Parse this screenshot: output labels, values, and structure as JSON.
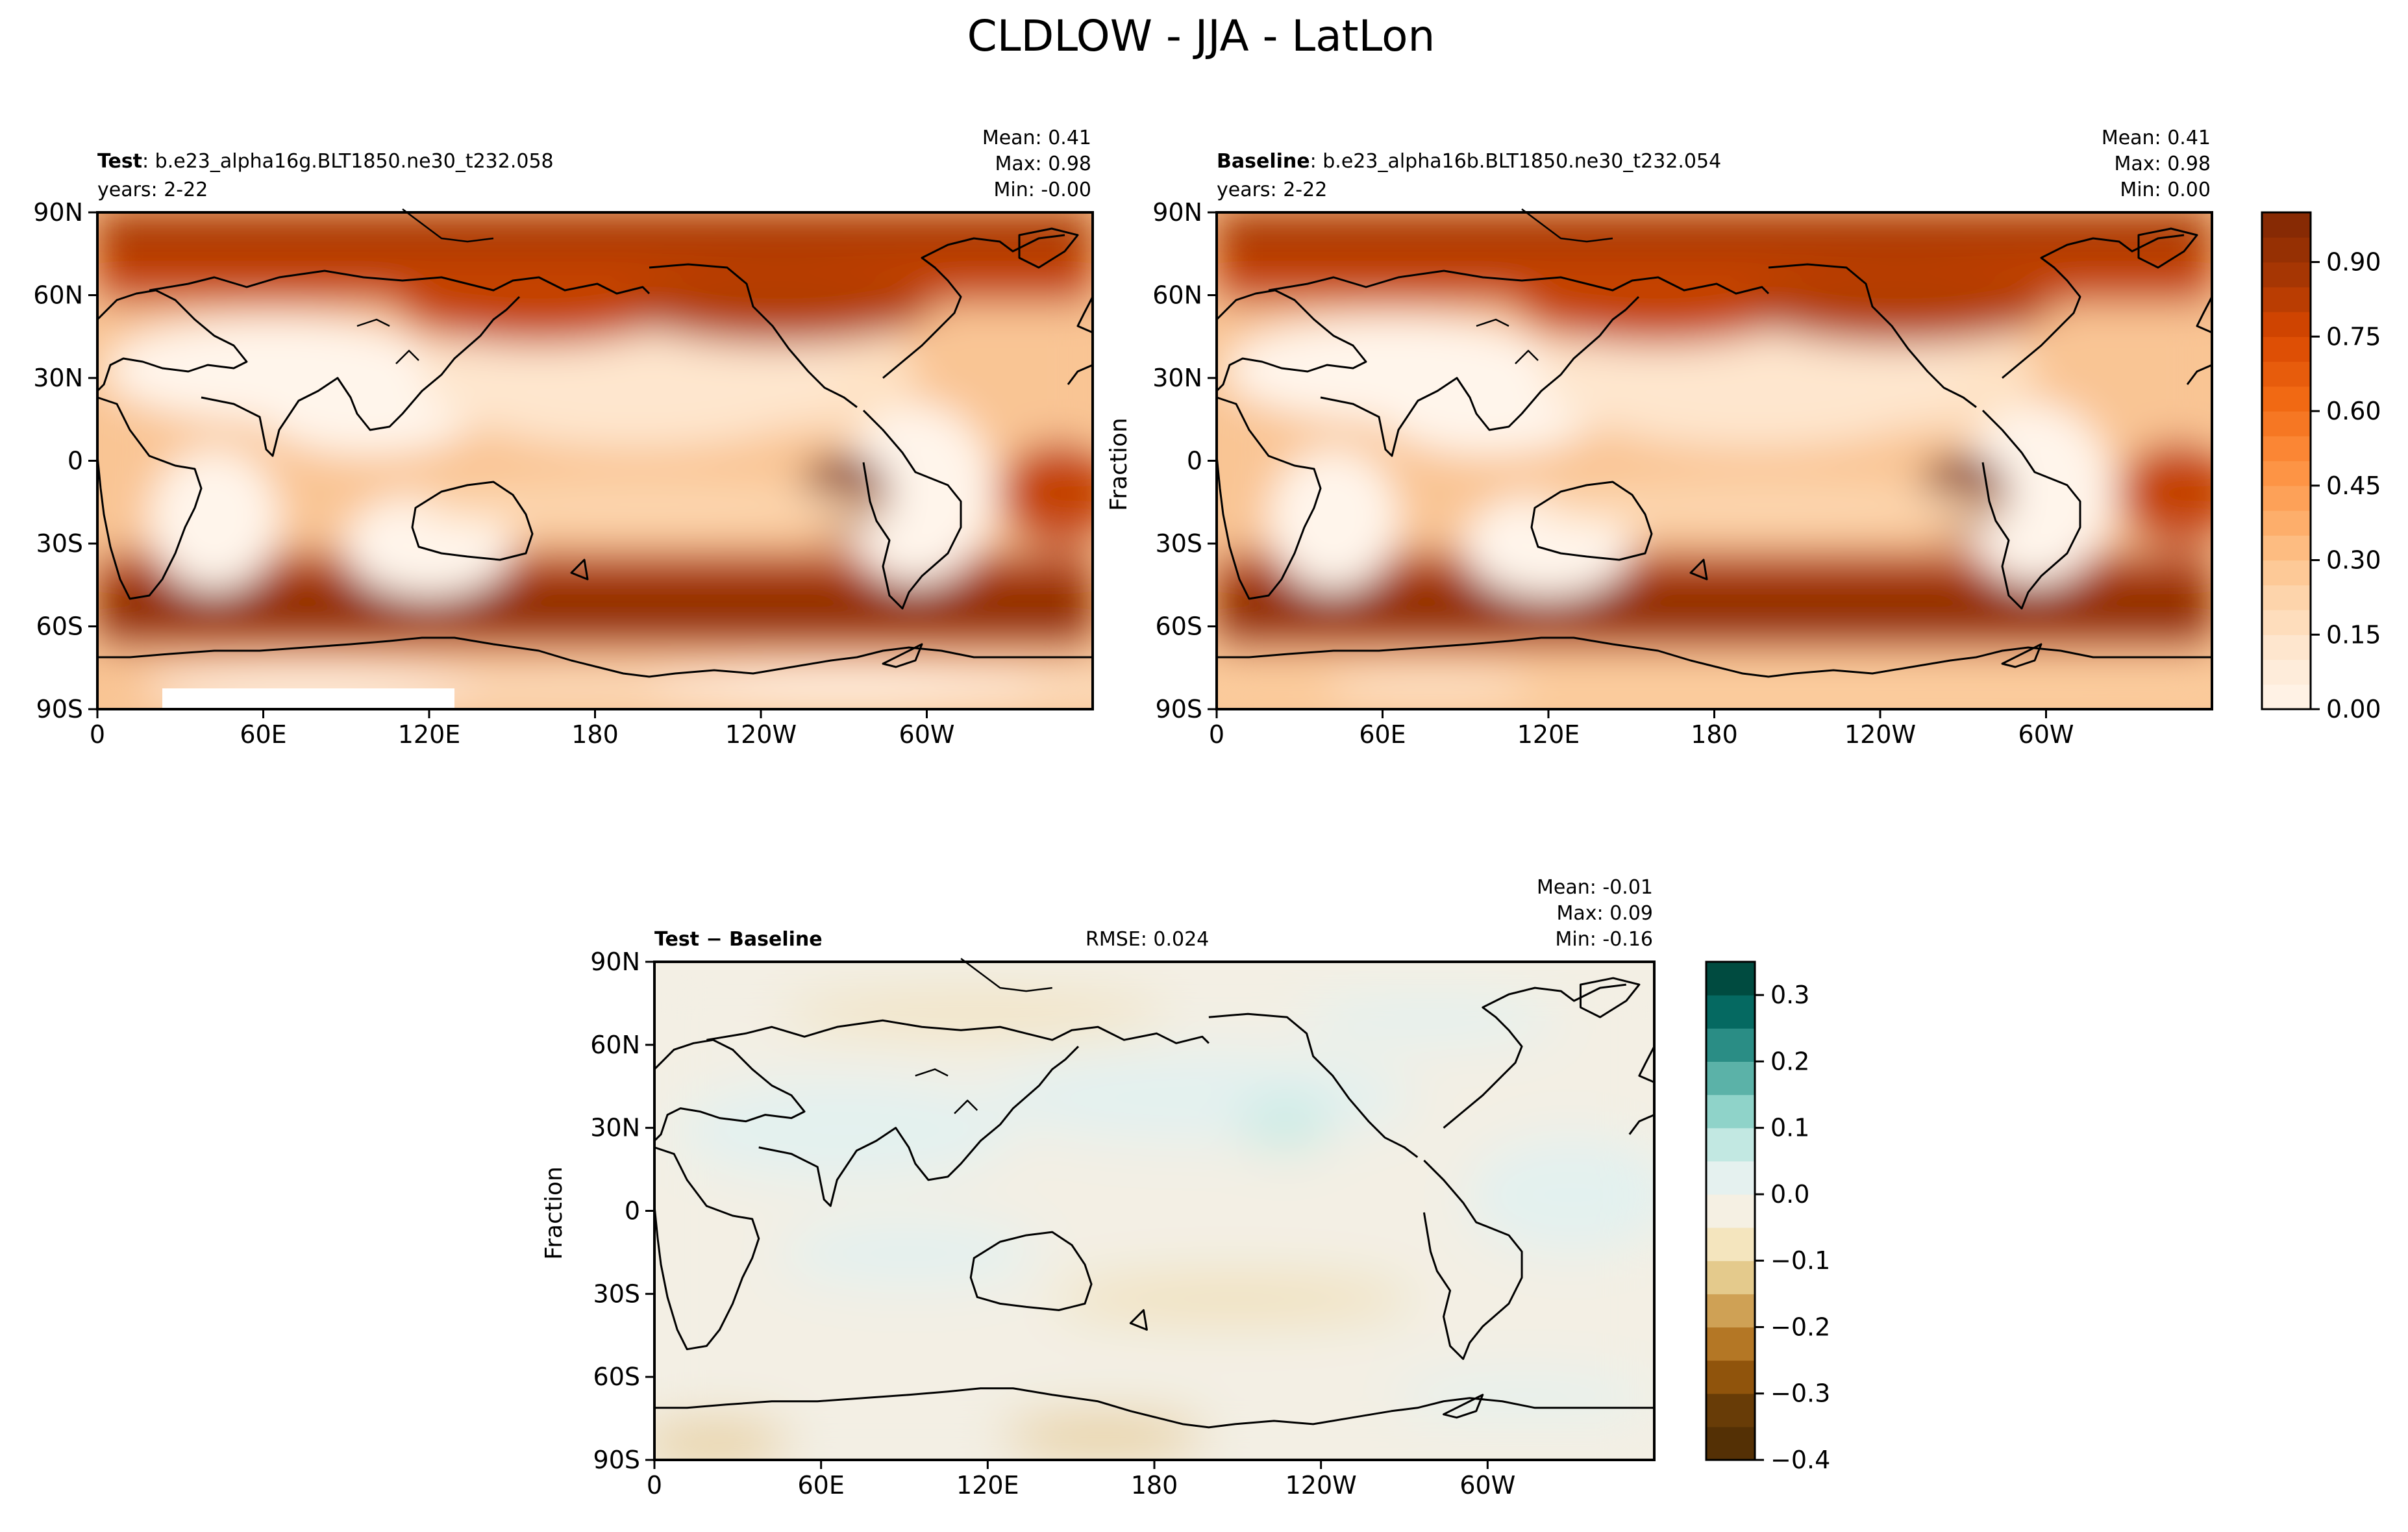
{
  "figure_title": "CLDLOW - JJA - LatLon",
  "colors": {
    "seq_stops": [
      "#fff5eb",
      "#fee6ce",
      "#fdd0a2",
      "#fdae6b",
      "#fd8d3c",
      "#f16913",
      "#d94801",
      "#a63603",
      "#7f2704"
    ],
    "div_stops": [
      "#543005",
      "#8c510a",
      "#bf812d",
      "#dfc27d",
      "#f6e8c3",
      "#f5f5f5",
      "#c7eae5",
      "#80cdc1",
      "#35978f",
      "#01665e",
      "#003c30"
    ],
    "land_outline": "#000000"
  },
  "chart_data": [
    {
      "type": "heatmap",
      "panel": "test",
      "label_bold": "Test",
      "label_text": ": b.e23_alpha16g.BLT1850.ne30_t232.058",
      "years": "years: 2-22",
      "stats": [
        "Mean:  0.41",
        "Max:  0.98",
        "Min: -0.00"
      ],
      "xticks": [
        "0",
        "60E",
        "120E",
        "180",
        "120W",
        "60W"
      ],
      "yticks": [
        "90N",
        "60N",
        "30N",
        "0",
        "30S",
        "60S",
        "90S"
      ],
      "xlim": [
        0,
        360
      ],
      "ylim": [
        -90,
        90
      ],
      "value_range": [
        0.0,
        0.98
      ]
    },
    {
      "type": "heatmap",
      "panel": "baseline",
      "label_bold": "Baseline",
      "label_text": ": b.e23_alpha16b.BLT1850.ne30_t232.054",
      "years": "years: 2-22",
      "stats": [
        "Mean:  0.41",
        "Max:  0.98",
        "Min:  0.00"
      ],
      "ylabel": "Fraction",
      "xticks": [
        "0",
        "60E",
        "120E",
        "180",
        "120W",
        "60W"
      ],
      "yticks": [
        "90N",
        "60N",
        "30N",
        "0",
        "30S",
        "60S",
        "90S"
      ],
      "xlim": [
        0,
        360
      ],
      "ylim": [
        -90,
        90
      ],
      "value_range": [
        0.0,
        0.98
      ],
      "colorbar": {
        "ticks": [
          "0.00",
          "0.15",
          "0.30",
          "0.45",
          "0.60",
          "0.75",
          "0.90"
        ],
        "min": 0.0,
        "max": 1.0,
        "levels": 20
      }
    },
    {
      "type": "heatmap",
      "panel": "diff",
      "label_bold": "Test − Baseline",
      "rmse": "RMSE: 0.024",
      "stats": [
        "Mean: -0.01",
        "Max:  0.09",
        "Min: -0.16"
      ],
      "ylabel": "Fraction",
      "xticks": [
        "0",
        "60E",
        "120E",
        "180",
        "120W",
        "60W"
      ],
      "yticks": [
        "90N",
        "60N",
        "30N",
        "0",
        "30S",
        "60S",
        "90S"
      ],
      "xlim": [
        0,
        360
      ],
      "ylim": [
        -90,
        90
      ],
      "value_range": [
        -0.16,
        0.09
      ],
      "colorbar": {
        "ticks": [
          "0.3",
          "0.2",
          "0.1",
          "0.0",
          "−0.1",
          "−0.2",
          "−0.3",
          "−0.4"
        ],
        "min": -0.4,
        "max": 0.35,
        "levels": 15
      }
    }
  ]
}
